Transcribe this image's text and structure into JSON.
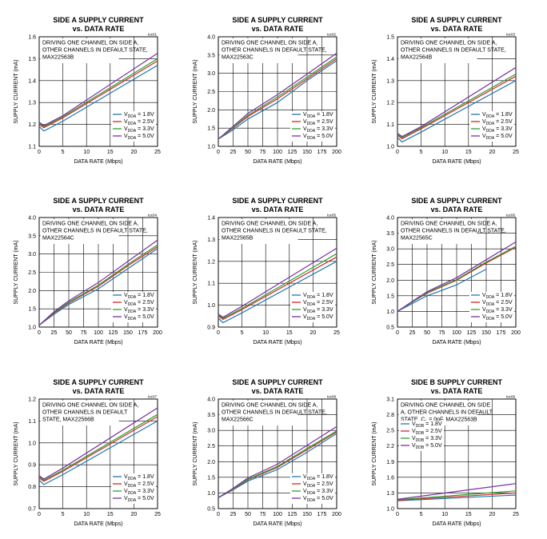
{
  "colors": {
    "s1": "#1f77b4",
    "s2": "#d62728",
    "s3": "#2ca02c",
    "s4": "#7b2fa3",
    "axis": "#000000"
  },
  "chart_data": [
    {
      "type": "line",
      "title": [
        "SIDE A SUPPLY CURRENT",
        "vs. DATA RATE"
      ],
      "code": "toc01",
      "annotation": [
        "DRIVING ONE CHANNEL ON  SIDE A,",
        "OTHER CHANNELS IN DEFAULT STATE,",
        "MAX22563B"
      ],
      "xlabel": "DATA RATE (Mbps)",
      "ylabel": "SUPPLY CURRENT (mA)",
      "xlim": [
        0,
        25
      ],
      "ylim": [
        1.1,
        1.6
      ],
      "xticks": [
        0,
        5,
        10,
        15,
        20,
        25
      ],
      "yticks": [
        1.1,
        1.2,
        1.3,
        1.4,
        1.5,
        1.6
      ],
      "tick_labels_y": [
        "1.1",
        "1.2",
        "1.3",
        "1.4",
        "1.5",
        "1.6"
      ],
      "legend_sub": "DDA",
      "legend_position": "bottom-right",
      "series": [
        {
          "name": "1.8V",
          "x": [
            0,
            1,
            5,
            25
          ],
          "y": [
            1.19,
            1.17,
            1.215,
            1.47
          ]
        },
        {
          "name": "2.5V",
          "x": [
            0,
            1,
            5,
            25
          ],
          "y": [
            1.2,
            1.185,
            1.23,
            1.49
          ]
        },
        {
          "name": "3.3V",
          "x": [
            0,
            1,
            5,
            25
          ],
          "y": [
            1.205,
            1.19,
            1.235,
            1.5
          ]
        },
        {
          "name": "5.0V",
          "x": [
            0,
            1,
            5,
            25
          ],
          "y": [
            1.21,
            1.195,
            1.24,
            1.525
          ]
        }
      ]
    },
    {
      "type": "line",
      "title": [
        "SIDE A SUPPLY CURRENT",
        "vs. DATA RATE"
      ],
      "code": "toc02",
      "annotation": [
        "DRIVING ONE CHANNEL ON  SIDE A,",
        "OTHER CHANNELS IN DEFAULT STATE,",
        "MAX22563C"
      ],
      "xlabel": "DATA RATE (Mbps)",
      "ylabel": "SUPPLY CURRENT (mA)",
      "xlim": [
        0,
        200
      ],
      "ylim": [
        1.0,
        4.0
      ],
      "xticks": [
        0,
        25,
        50,
        75,
        100,
        125,
        150,
        175,
        200
      ],
      "yticks": [
        1.0,
        1.5,
        2.0,
        2.5,
        3.0,
        3.5,
        4.0
      ],
      "tick_labels_y": [
        "1.0",
        "1.5",
        "2.0",
        "2.5",
        "3.0",
        "3.5",
        "4.0"
      ],
      "legend_sub": "DDA",
      "legend_position": "bottom-right",
      "series": [
        {
          "name": "1.8V",
          "x": [
            0,
            25,
            50,
            100,
            150,
            200
          ],
          "y": [
            1.2,
            1.45,
            1.75,
            2.2,
            2.8,
            3.35
          ]
        },
        {
          "name": "2.5V",
          "x": [
            0,
            25,
            50,
            100,
            150,
            200
          ],
          "y": [
            1.2,
            1.5,
            1.82,
            2.3,
            2.85,
            3.4
          ]
        },
        {
          "name": "3.3V",
          "x": [
            0,
            25,
            50,
            100,
            150,
            200
          ],
          "y": [
            1.2,
            1.52,
            1.85,
            2.35,
            2.9,
            3.45
          ]
        },
        {
          "name": "5.0V",
          "x": [
            0,
            25,
            50,
            100,
            150,
            200
          ],
          "y": [
            1.2,
            1.55,
            1.9,
            2.42,
            2.98,
            3.55
          ]
        }
      ]
    },
    {
      "type": "line",
      "title": [
        "SIDE A SUPPLY CURRENT",
        "vs. DATA RATE"
      ],
      "code": "toc03",
      "annotation": [
        "DRIVING ONE CHANNEL ON  SIDE A,",
        "OTHER CHANNELS IN DEFAULT STATE,",
        "MAX22564B"
      ],
      "xlabel": "DATA RATE (Mbps)",
      "ylabel": "SUPPLY CURRENT (mA)",
      "xlim": [
        0,
        25
      ],
      "ylim": [
        1.0,
        1.5
      ],
      "xticks": [
        0,
        5,
        10,
        15,
        20,
        25
      ],
      "yticks": [
        1.0,
        1.1,
        1.2,
        1.3,
        1.4,
        1.5
      ],
      "tick_labels_y": [
        "1.0",
        "1.1",
        "1.2",
        "1.3",
        "1.4",
        "1.5"
      ],
      "legend_sub": "DDA",
      "legend_position": "bottom-right",
      "series": [
        {
          "name": "1.8V",
          "x": [
            0,
            1,
            5,
            25
          ],
          "y": [
            1.04,
            1.02,
            1.065,
            1.3
          ]
        },
        {
          "name": "2.5V",
          "x": [
            0,
            1,
            5,
            25
          ],
          "y": [
            1.05,
            1.035,
            1.08,
            1.32
          ]
        },
        {
          "name": "3.3V",
          "x": [
            0,
            1,
            5,
            25
          ],
          "y": [
            1.055,
            1.04,
            1.085,
            1.33
          ]
        },
        {
          "name": "5.0V",
          "x": [
            0,
            1,
            5,
            25
          ],
          "y": [
            1.06,
            1.045,
            1.09,
            1.36
          ]
        }
      ]
    },
    {
      "type": "line",
      "title": [
        "SIDE A SUPPLY CURRENT",
        "vs. DATA RATE"
      ],
      "code": "toc04",
      "annotation": [
        "DRIVING ONE CHANNEL ON  SIDE A,",
        "OTHER CHANNELS IN DEFAULT STATE,",
        "MAX22564C"
      ],
      "xlabel": "DATA RATE (Mbps)",
      "ylabel": "SUPPLY CURRENT (mA)",
      "xlim": [
        0,
        200
      ],
      "ylim": [
        1.0,
        4.0
      ],
      "xticks": [
        0,
        25,
        50,
        75,
        100,
        125,
        150,
        175,
        200
      ],
      "yticks": [
        1.0,
        1.5,
        2.0,
        2.5,
        3.0,
        3.5,
        4.0
      ],
      "tick_labels_y": [
        "1.0",
        "1.5",
        "2.0",
        "2.5",
        "3.0",
        "3.5",
        "4.0"
      ],
      "legend_sub": "DDA",
      "legend_position": "bottom-right",
      "series": [
        {
          "name": "1.8V",
          "x": [
            0,
            25,
            50,
            100,
            150,
            200
          ],
          "y": [
            1.05,
            1.35,
            1.62,
            2.05,
            2.6,
            3.15
          ]
        },
        {
          "name": "2.5V",
          "x": [
            0,
            25,
            50,
            100,
            150,
            200
          ],
          "y": [
            1.05,
            1.38,
            1.66,
            2.12,
            2.68,
            3.2
          ]
        },
        {
          "name": "3.3V",
          "x": [
            0,
            25,
            50,
            100,
            150,
            200
          ],
          "y": [
            1.05,
            1.4,
            1.68,
            2.15,
            2.72,
            3.25
          ]
        },
        {
          "name": "5.0V",
          "x": [
            0,
            25,
            50,
            100,
            150,
            200
          ],
          "y": [
            1.05,
            1.42,
            1.72,
            2.22,
            2.8,
            3.38
          ]
        }
      ]
    },
    {
      "type": "line",
      "title": [
        "SIDE A SUPPLY CURRENT",
        "vs. DATA RATE"
      ],
      "code": "toc05",
      "annotation": [
        "DRIVING ONE CHANNEL ON  SIDE A,",
        "OTHER CHANNELS IN DEFAULT STATE,",
        "MAX22565B"
      ],
      "xlabel": "DATA RATE (Mbps)",
      "ylabel": "SUPPLY CURRENT (mA)",
      "xlim": [
        0,
        25
      ],
      "ylim": [
        0.9,
        1.4
      ],
      "xticks": [
        0,
        5,
        10,
        15,
        20,
        25
      ],
      "yticks": [
        0.9,
        1.0,
        1.1,
        1.2,
        1.3,
        1.4
      ],
      "tick_labels_y": [
        "0.9",
        "1.0",
        "1.1",
        "1.2",
        "1.3",
        "1.4"
      ],
      "legend_sub": "DDA",
      "legend_position": "bottom-right",
      "series": [
        {
          "name": "1.8V",
          "x": [
            0,
            1,
            5,
            25
          ],
          "y": [
            0.94,
            0.92,
            0.965,
            1.2
          ]
        },
        {
          "name": "2.5V",
          "x": [
            0,
            1,
            5,
            25
          ],
          "y": [
            0.95,
            0.935,
            0.98,
            1.22
          ]
        },
        {
          "name": "3.3V",
          "x": [
            0,
            1,
            5,
            25
          ],
          "y": [
            0.955,
            0.94,
            0.985,
            1.235
          ]
        },
        {
          "name": "5.0V",
          "x": [
            0,
            1,
            5,
            25
          ],
          "y": [
            0.96,
            0.945,
            0.995,
            1.26
          ]
        }
      ]
    },
    {
      "type": "line",
      "title": [
        "SIDE A SUPPLY CURRENT",
        "vs. DATA RATE"
      ],
      "code": "toc06",
      "annotation": [
        "DRIVING ONE CHANNEL ON  SIDE A,",
        "OTHER CHANNELS IN DEFAULT STATE,",
        "MAX22565C"
      ],
      "xlabel": "DATA RATE (Mbps)",
      "ylabel": "SUPPLY CURRENT (mA)",
      "xlim": [
        0,
        200
      ],
      "ylim": [
        0.5,
        4.0
      ],
      "xticks": [
        0,
        25,
        50,
        75,
        100,
        125,
        150,
        175,
        200
      ],
      "yticks": [
        0.5,
        1.0,
        1.5,
        2.0,
        2.5,
        3.0,
        3.5,
        4.0
      ],
      "tick_labels_y": [
        "0.5",
        "1.0",
        "1.5",
        "2.0",
        "2.5",
        "3.0",
        "3.5",
        "4.0"
      ],
      "legend_sub": "DDA",
      "legend_position": "bottom-right",
      "series": [
        {
          "name": "1.8V",
          "x": [
            0,
            25,
            50,
            100,
            150
          ],
          "y": [
            1.0,
            1.25,
            1.5,
            1.85,
            2.35
          ]
        },
        {
          "name": "2.5V",
          "x": [
            0,
            25,
            50,
            100,
            150,
            200
          ],
          "y": [
            1.0,
            1.3,
            1.58,
            2.0,
            2.55,
            3.05
          ]
        },
        {
          "name": "3.3V",
          "x": [
            0,
            25,
            50,
            100,
            150,
            200
          ],
          "y": [
            1.0,
            1.3,
            1.6,
            2.02,
            2.58,
            3.08
          ]
        },
        {
          "name": "5.0V",
          "x": [
            0,
            25,
            50,
            100,
            150,
            200
          ],
          "y": [
            1.0,
            1.32,
            1.63,
            2.08,
            2.65,
            3.22
          ]
        }
      ]
    },
    {
      "type": "line",
      "title": [
        "SIDE A SUPPLY CURRENT",
        "vs. DATA RATE"
      ],
      "code": "toc07",
      "annotation": [
        "DRIVING ONE CHANNEL ON  SIDE A,",
        "OTHER CHANNELS IN DEFAULT",
        "STATE, MAX22566B"
      ],
      "xlabel": "DATA RATE (Mbps)",
      "ylabel": "SUPPLY CURRENT (mA)",
      "xlim": [
        0,
        25
      ],
      "ylim": [
        0.7,
        1.2
      ],
      "xticks": [
        0,
        5,
        10,
        15,
        20,
        25
      ],
      "yticks": [
        0.7,
        0.8,
        0.9,
        1.0,
        1.1,
        1.2
      ],
      "tick_labels_y": [
        "0.7",
        "0.8",
        "0.9",
        "1.0",
        "1.1",
        "1.2"
      ],
      "legend_sub": "DDA",
      "legend_position": "bottom-right",
      "series": [
        {
          "name": "1.8V",
          "x": [
            0,
            1,
            5,
            25
          ],
          "y": [
            0.83,
            0.81,
            0.855,
            1.1
          ]
        },
        {
          "name": "2.5V",
          "x": [
            0,
            1,
            5,
            25
          ],
          "y": [
            0.84,
            0.825,
            0.87,
            1.12
          ]
        },
        {
          "name": "3.3V",
          "x": [
            0,
            1,
            5,
            25
          ],
          "y": [
            0.845,
            0.83,
            0.875,
            1.13
          ]
        },
        {
          "name": "5.0V",
          "x": [
            0,
            1,
            5,
            25
          ],
          "y": [
            0.85,
            0.835,
            0.885,
            1.16
          ]
        }
      ]
    },
    {
      "type": "line",
      "title": [
        "SIDE A SUPPLY CURRENT",
        "vs. DATA RATE"
      ],
      "code": "toc08",
      "annotation": [
        "DRIVING ONE CHANNEL ON  SIDE A,",
        "OTHER CHANNELS IN DEFAULT STATE,",
        "MAX22566C"
      ],
      "xlabel": "DATA RATE (Mbps)",
      "ylabel": "SUPPLY CURRENT (mA)",
      "xlim": [
        0,
        200
      ],
      "ylim": [
        0.5,
        4.0
      ],
      "xticks": [
        0,
        25,
        50,
        75,
        100,
        125,
        150,
        175,
        200
      ],
      "yticks": [
        0.5,
        1.0,
        1.5,
        2.0,
        2.5,
        3.0,
        3.5,
        4.0
      ],
      "tick_labels_y": [
        "0.5",
        "1.0",
        "1.5",
        "2.0",
        "2.5",
        "3.0",
        "3.5",
        "4.0"
      ],
      "legend_sub": "DDA",
      "legend_position": "bottom-right",
      "series": [
        {
          "name": "1.8V",
          "x": [
            0,
            25,
            50,
            100,
            150,
            200
          ],
          "y": [
            0.85,
            1.1,
            1.38,
            1.75,
            2.3,
            2.9
          ]
        },
        {
          "name": "2.5V",
          "x": [
            0,
            25,
            50,
            100,
            150,
            200
          ],
          "y": [
            0.85,
            1.12,
            1.42,
            1.82,
            2.38,
            2.95
          ]
        },
        {
          "name": "3.3V",
          "x": [
            0,
            25,
            50,
            100,
            150,
            200
          ],
          "y": [
            0.85,
            1.13,
            1.44,
            1.85,
            2.42,
            2.98
          ]
        },
        {
          "name": "5.0V",
          "x": [
            0,
            25,
            50,
            100,
            150,
            200
          ],
          "y": [
            0.85,
            1.15,
            1.48,
            1.92,
            2.52,
            3.12
          ]
        }
      ]
    },
    {
      "type": "line",
      "title": [
        "SIDE B SUPPLY CURRENT",
        "vs. DATA RATE"
      ],
      "code": "toc09",
      "annotation": [
        "DRIVING ONE CHANNEL ON  SIDE",
        "A, OTHER CHANNELS IN DEFAULT",
        "STATE, C"
      ],
      "annotation_sub": "L",
      "annotation_tail": " = 0pF, MAX22563B",
      "xlabel": "DATA RATE (Mbps)",
      "ylabel": "SUPPLY CURRENT (mA)",
      "xlim": [
        0,
        25
      ],
      "ylim": [
        1.0,
        3.1
      ],
      "xticks": [
        0,
        5,
        10,
        15,
        20,
        25
      ],
      "yticks": [
        1.0,
        1.3,
        1.6,
        1.9,
        2.2,
        2.5,
        2.8,
        3.1
      ],
      "tick_labels_y": [
        "1.0",
        "1.3",
        "1.6",
        "1.9",
        "2.2",
        "2.5",
        "2.8",
        "3.1"
      ],
      "legend_sub": "DDB",
      "legend_position": "top-left",
      "series": [
        {
          "name": "1.8V",
          "x": [
            0,
            25
          ],
          "y": [
            1.15,
            1.26
          ]
        },
        {
          "name": "2.5V",
          "x": [
            0,
            25
          ],
          "y": [
            1.16,
            1.3
          ]
        },
        {
          "name": "3.3V",
          "x": [
            0,
            25
          ],
          "y": [
            1.17,
            1.34
          ]
        },
        {
          "name": "5.0V",
          "x": [
            0,
            25
          ],
          "y": [
            1.18,
            1.48
          ]
        }
      ]
    }
  ]
}
